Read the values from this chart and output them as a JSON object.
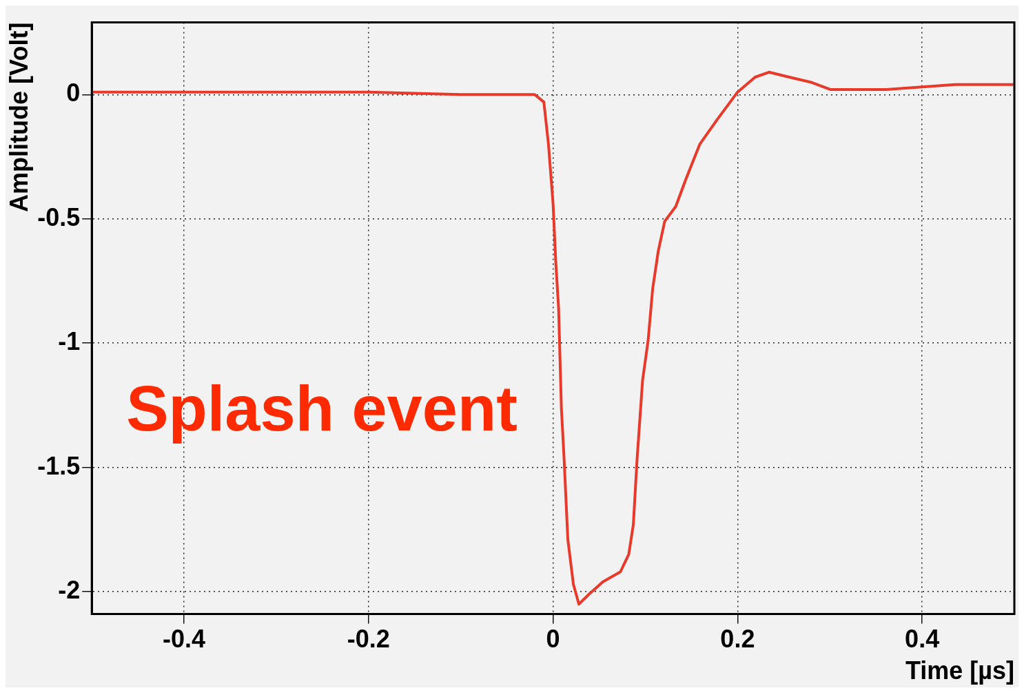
{
  "chart_data": {
    "type": "line",
    "xlabel": "Time [µs]",
    "ylabel": "Amplitude [Volt]",
    "annotations": [
      "Splash event"
    ],
    "xlim": [
      -0.5,
      0.5
    ],
    "ylim": [
      -2.09,
      0.29
    ],
    "xticks": [
      -0.4,
      -0.2,
      0,
      0.2,
      0.4
    ],
    "yticks": [
      -2,
      -1.5,
      -1,
      -0.5,
      0
    ],
    "grid": true,
    "legend": false,
    "marker": "none",
    "line_style": "solid",
    "series": [
      {
        "color": "#e8392a",
        "x": [
          -0.5,
          -0.4,
          -0.3,
          -0.2,
          -0.1,
          -0.02,
          -0.01,
          -0.005,
          0,
          0.003,
          0.006,
          0.009,
          0.012,
          0.016,
          0.022,
          0.028,
          0.039,
          0.054,
          0.073,
          0.082,
          0.087,
          0.091,
          0.097,
          0.103,
          0.108,
          0.114,
          0.121,
          0.133,
          0.144,
          0.159,
          0.178,
          0.2,
          0.219,
          0.234,
          0.256,
          0.279,
          0.301,
          0.361,
          0.436,
          0.499
        ],
        "values": [
          0.01,
          0.01,
          0.01,
          0.01,
          0.0,
          0.0,
          -0.03,
          -0.2,
          -0.44,
          -0.68,
          -0.86,
          -1.26,
          -1.47,
          -1.79,
          -1.97,
          -2.05,
          -2.01,
          -1.96,
          -1.92,
          -1.85,
          -1.73,
          -1.47,
          -1.15,
          -0.99,
          -0.78,
          -0.63,
          -0.51,
          -0.45,
          -0.34,
          -0.2,
          -0.1,
          0.01,
          0.07,
          0.09,
          0.07,
          0.05,
          0.02,
          0.02,
          0.04,
          0.04
        ]
      }
    ]
  }
}
